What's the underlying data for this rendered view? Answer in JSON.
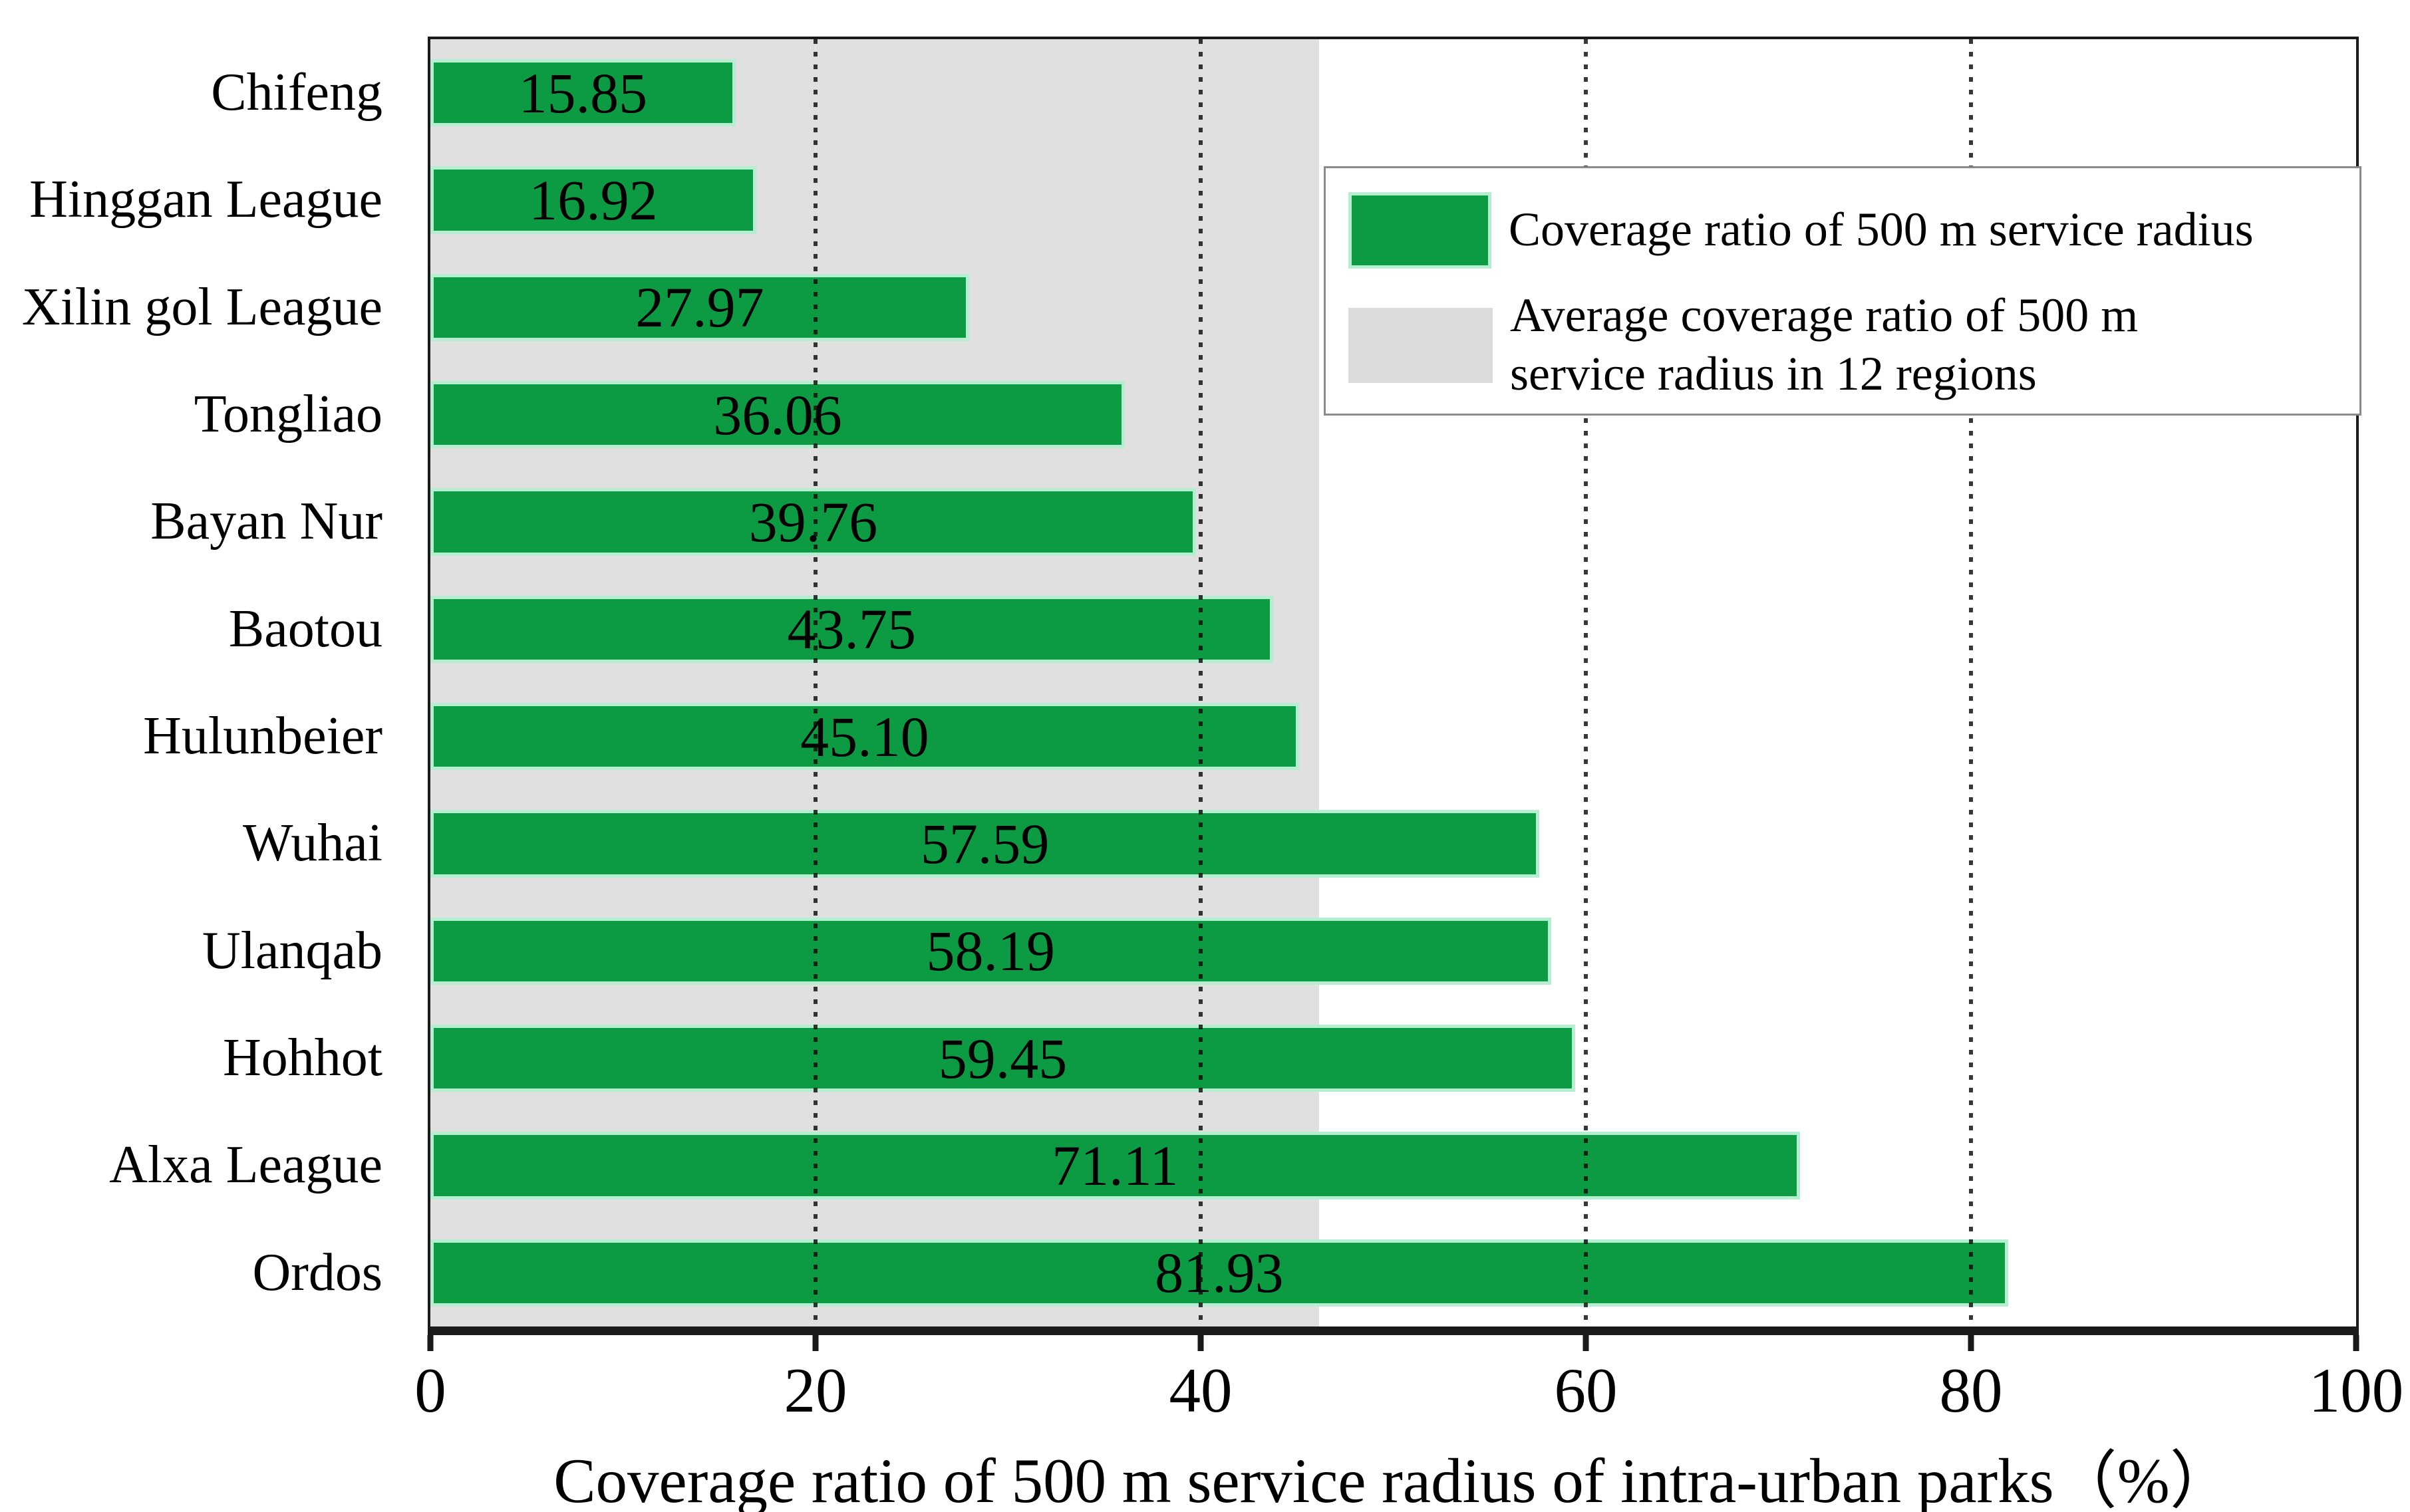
{
  "chart_data": {
    "type": "bar",
    "orientation": "horizontal",
    "categories": [
      "Chifeng",
      "Hinggan League",
      "Xilin gol League",
      "Tongliao",
      "Bayan Nur",
      "Baotou",
      "Hulunbeier",
      "Wuhai",
      "Ulanqab",
      "Hohhot",
      "Alxa League",
      "Ordos"
    ],
    "values": [
      15.85,
      16.92,
      27.97,
      36.06,
      39.76,
      43.75,
      45.1,
      57.59,
      58.19,
      59.45,
      71.11,
      81.93
    ],
    "value_labels": [
      "15.85",
      "16.92",
      "27.97",
      "36.06",
      "39.76",
      "43.75",
      "45.10",
      "57.59",
      "58.19",
      "59.45",
      "71.11",
      "81.93"
    ],
    "average_value": 46.14,
    "xlabel": "Coverage ratio of 500 m service radius of intra-urban parks（%）",
    "xlim": [
      0,
      100
    ],
    "xticks": [
      0,
      20,
      40,
      60,
      80,
      100
    ],
    "xtick_labels": [
      "0",
      "20",
      "40",
      "60",
      "80",
      "100"
    ],
    "grid_x": [
      20,
      40,
      60,
      80
    ],
    "grid_style": "dotted vertical lines",
    "legend": {
      "position": "upper right",
      "entries": [
        {
          "label": "Coverage ratio of 500 m service radius",
          "color": "#0c9a43"
        },
        {
          "label": "Average coverage ratio of 500 m service radius in 12 regions",
          "label_lines": [
            "Average coverage ratio of 500 m",
            "service radius in 12 regions"
          ],
          "color": "#dcdcdc"
        }
      ]
    }
  },
  "colors": {
    "bar_fill": "#0c9a43",
    "bar_edge": "#b5eed0",
    "average_band": "#e0e0e0",
    "legend_gray_swatch": "#dcdcdc",
    "axis_line": "#1a1a1a",
    "grid_dots": "#141414",
    "legend_border": "#8a8a8a",
    "text": "#000000",
    "background": "#ffffff"
  }
}
